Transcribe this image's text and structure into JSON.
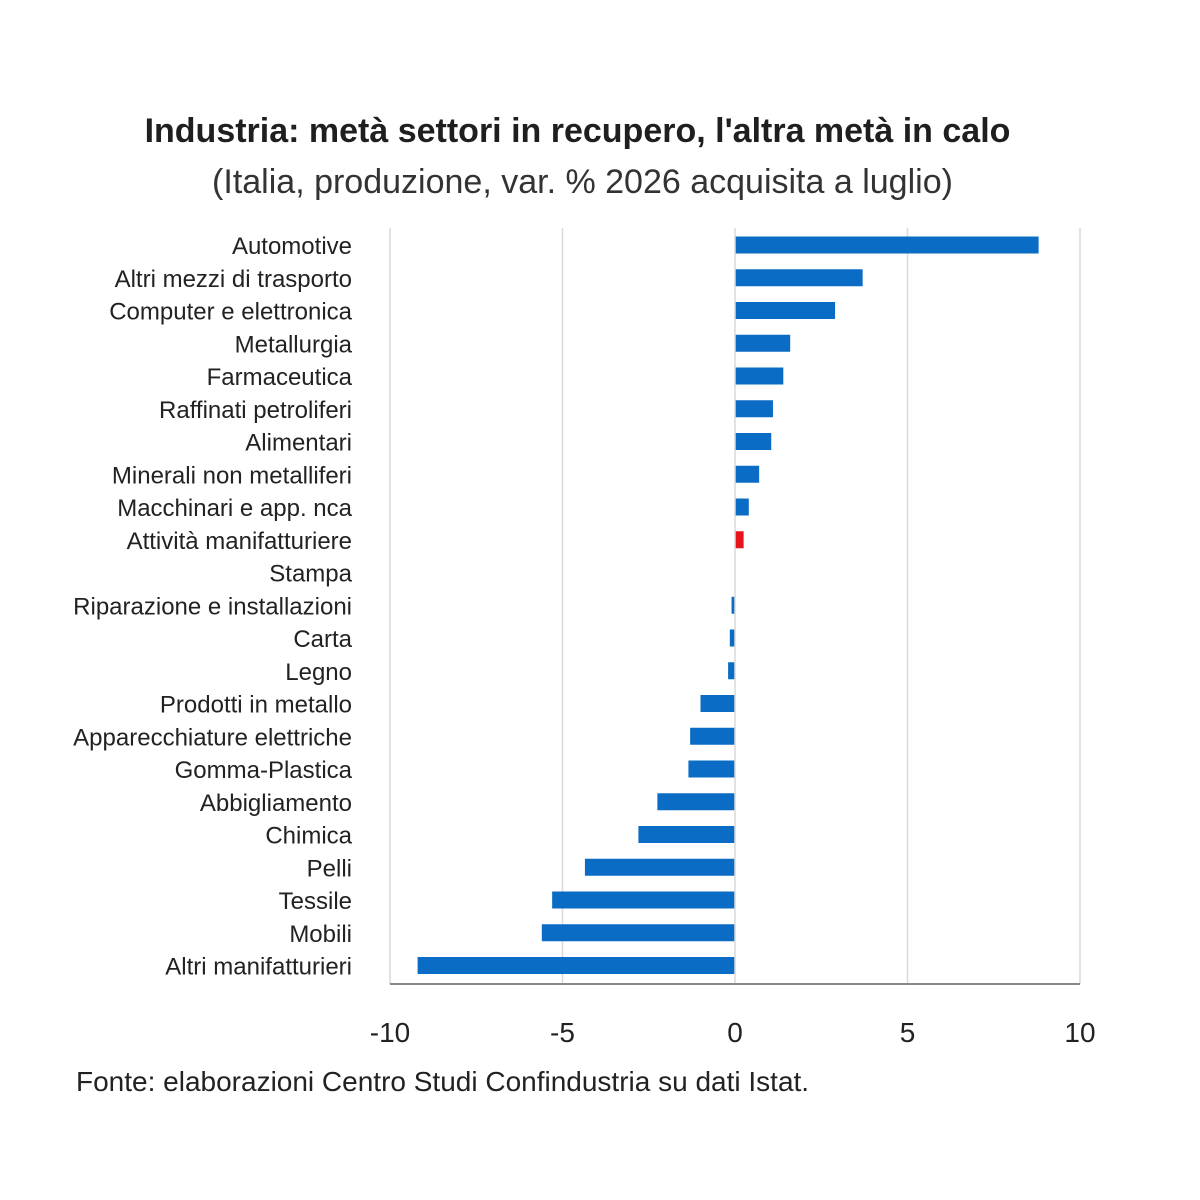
{
  "title": "Industria: metà settori in recupero, l'altra metà in calo",
  "subtitle": "(Italia, produzione, var. % 2026 acquisita a luglio)",
  "source": "Fonte: elaborazioni Centro Studi Confindustria su dati Istat.",
  "chart_data": {
    "type": "bar",
    "orientation": "horizontal",
    "title": "Industria: metà settori in recupero, l'altra metà in calo",
    "subtitle": "(Italia, produzione, var. % 2026 acquisita a luglio)",
    "xlabel": "",
    "ylabel": "",
    "xlim": [
      -10,
      10
    ],
    "xticks": [
      -10,
      -5,
      0,
      5,
      10
    ],
    "xtick_labels": [
      "-10",
      "-5",
      "0",
      "5",
      "10"
    ],
    "grid": "vertical",
    "legend": "none",
    "colors": {
      "default": "#0A6CC4",
      "highlight": "#E8141B",
      "grid": "#d9d9d9",
      "axis": "#888888"
    },
    "highlight_category": "Attività manifatturiere",
    "categories": [
      "Automotive",
      "Altri mezzi di trasporto",
      "Computer e elettronica",
      "Metallurgia",
      "Farmaceutica",
      "Raffinati petroliferi",
      "Alimentari",
      "Minerali non metalliferi",
      "Macchinari e app. nca",
      "Attività manifatturiere",
      "Stampa",
      "Riparazione e installazioni",
      "Carta",
      "Legno",
      "Prodotti in metallo",
      "Apparecchiature elettriche",
      "Gomma-Plastica",
      "Abbigliamento",
      "Chimica",
      "Pelli",
      "Tessile",
      "Mobili",
      "Altri manifatturieri"
    ],
    "values": [
      8.8,
      3.7,
      2.9,
      1.6,
      1.4,
      1.1,
      1.05,
      0.7,
      0.4,
      0.25,
      0.0,
      -0.1,
      -0.15,
      -0.2,
      -1.0,
      -1.3,
      -1.35,
      -2.25,
      -2.8,
      -4.35,
      -5.3,
      -5.6,
      -9.2
    ]
  }
}
